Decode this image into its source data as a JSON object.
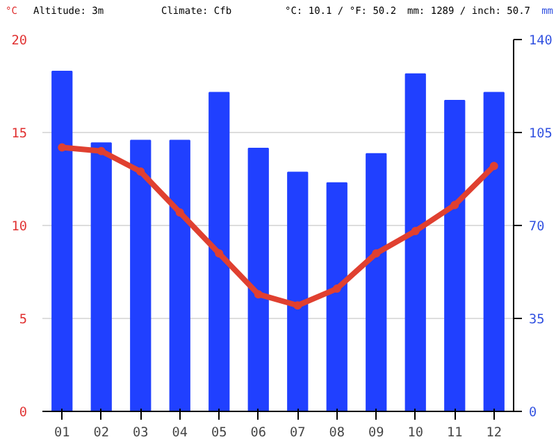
{
  "chart_data": {
    "type": "bar",
    "categories": [
      "01",
      "02",
      "03",
      "04",
      "05",
      "06",
      "07",
      "08",
      "09",
      "10",
      "11",
      "12"
    ],
    "ylabel": "°C",
    "y2label": "mm",
    "annotations": [
      "Altitude: 3m",
      "Climate: Cfb",
      "°C: 10.1 / °F: 50.2",
      "mm: 1289 / inch: 50.7"
    ],
    "series": [
      {
        "axis": "y2",
        "color": "#2040ff",
        "values": [
          128,
          101,
          102,
          102,
          120,
          99,
          90,
          86,
          97,
          127,
          117,
          120
        ]
      },
      {
        "type": "line",
        "axis": "y",
        "color": "#e04030",
        "marker": "circle",
        "values": [
          14.2,
          14.0,
          12.9,
          10.7,
          8.5,
          6.3,
          5.7,
          6.6,
          8.5,
          9.7,
          11.1,
          13.2
        ]
      }
    ],
    "ylim": [
      0,
      20
    ],
    "yticks": [
      0,
      5,
      10,
      15,
      20
    ],
    "y2lim": [
      0,
      140
    ],
    "y2ticks": [
      0,
      35,
      70,
      105,
      140
    ],
    "grid": "y"
  }
}
